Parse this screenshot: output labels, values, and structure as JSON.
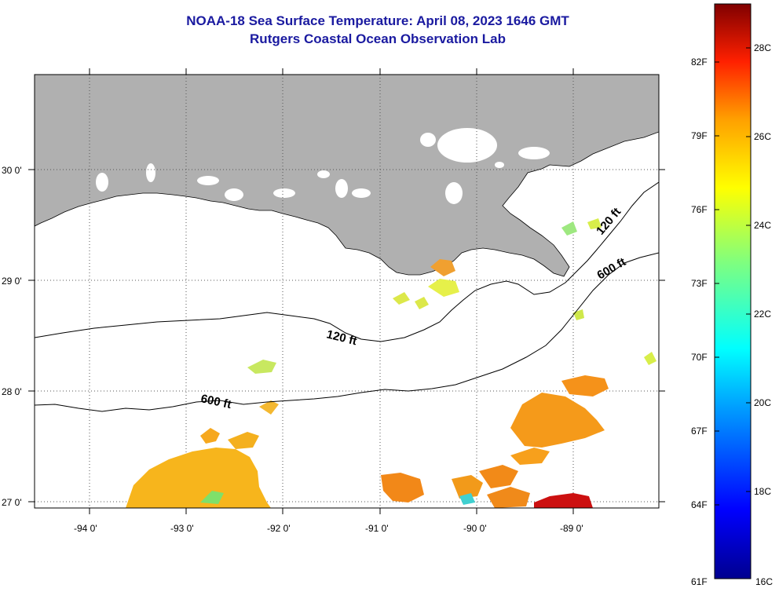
{
  "title": {
    "line1": "NOAA-18 Sea Surface Temperature:  April 08, 2023 1646 GMT",
    "line2": "Rutgers Coastal Ocean Observation Lab"
  },
  "map": {
    "latitude_labels": [
      "30 0'",
      "29 0'",
      "28 0'",
      "27 0'"
    ],
    "longitude_labels": [
      "-94 0'",
      "-93 0'",
      "-92 0'",
      "-91 0'",
      "-90 0'",
      "-89 0'"
    ],
    "lat_range": [
      26.93,
      30.85
    ],
    "lon_range": [
      -94.5,
      -88.35
    ],
    "contours": [
      {
        "label": "120 ft",
        "label_near_shore": "120 ft"
      },
      {
        "label": "600 ft",
        "label_near_shore": "600 ft"
      }
    ],
    "land_color": "#b0b0b0",
    "water_color": "#ffffff",
    "grid": "dotted"
  },
  "colorbar": {
    "fahrenheit_labels": [
      "82F",
      "79F",
      "76F",
      "73F",
      "70F",
      "67F",
      "64F",
      "61F"
    ],
    "celsius_labels": [
      "28C",
      "26C",
      "24C",
      "22C",
      "20C",
      "18C",
      "16C"
    ],
    "range_c": [
      16,
      29.5
    ]
  }
}
